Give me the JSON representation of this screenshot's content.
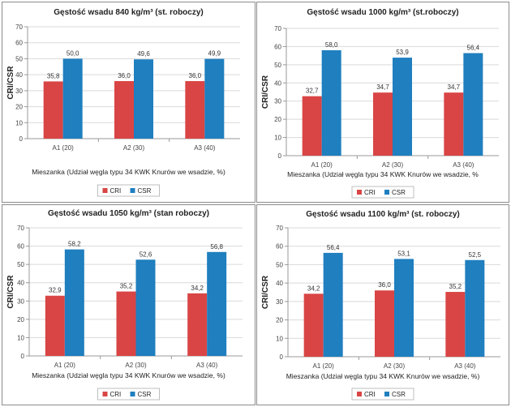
{
  "chart_data": [
    {
      "type": "bar",
      "title": "Gęstość wsadu 840 kg/m³ (st. roboczy)",
      "categories": [
        "A1 (20)",
        "A2 (30)",
        "A3 (40)"
      ],
      "series": [
        {
          "name": "CRI",
          "values": [
            "35,8",
            "36,0",
            "36,0"
          ]
        },
        {
          "name": "CSR",
          "values": [
            "50,0",
            "49,6",
            "49,9"
          ]
        }
      ],
      "xlabel": "Mieszanka (Udział węgla typu 34 KWK Knurów we wsadzie, %)",
      "ylabel": "CRI/CSR",
      "ylim": [
        0,
        70
      ],
      "yticks": [
        "0",
        "10",
        "20",
        "30",
        "40",
        "50",
        "60",
        "70"
      ],
      "legend": "bottom-center"
    },
    {
      "type": "bar",
      "title": "Gęstość wsadu 1000 kg/m³ (st.roboczy)",
      "categories": [
        "A1 (20)",
        "A2 (30)",
        "A3 (40)"
      ],
      "series": [
        {
          "name": "CRI",
          "values": [
            "32,7",
            "34,7",
            "34,7"
          ]
        },
        {
          "name": "CSR",
          "values": [
            "58,0",
            "53,9",
            "56,4"
          ]
        }
      ],
      "xlabel": "Mieszanka (Udział węgla typu 34 KWK Knurów we wsadzie, %",
      "ylabel": "CRI/CSR",
      "ylim": [
        0,
        70
      ],
      "yticks": [
        "0",
        "10",
        "20",
        "30",
        "40",
        "50",
        "60",
        "70"
      ],
      "legend": "bottom-center"
    },
    {
      "type": "bar",
      "title": "Gęstość wsadu 1050 kg/m³ (stan roboczy)",
      "categories": [
        "A1 (20)",
        "A2 (30)",
        "A3 (40)"
      ],
      "series": [
        {
          "name": "CRI",
          "values": [
            "32,9",
            "35,2",
            "34,2"
          ]
        },
        {
          "name": "CSR",
          "values": [
            "58,2",
            "52,6",
            "56,8"
          ]
        }
      ],
      "xlabel": "Mieszanka (Udział węgla typu 34 KWK Knurów we wsadzie, %)",
      "ylabel": "CRI/CSR",
      "ylim": [
        0,
        70
      ],
      "yticks": [
        "0",
        "10",
        "20",
        "30",
        "40",
        "50",
        "60",
        "70"
      ],
      "legend": "bottom-center"
    },
    {
      "type": "bar",
      "title": "Gęstość wsadu 1100 kg/m³ (st. roboczy)",
      "categories": [
        "A1 (20)",
        "A2 (30)",
        "A3 (40)"
      ],
      "series": [
        {
          "name": "CRI",
          "values": [
            "34,2",
            "36,0",
            "35,2"
          ]
        },
        {
          "name": "CSR",
          "values": [
            "56,4",
            "53,1",
            "52,5"
          ]
        }
      ],
      "xlabel": "Mieszanka (Udział węgla typu 34 KWK Knurów we wsadzie, %)",
      "ylabel": "CRI/CSR",
      "ylim": [
        0,
        70
      ],
      "yticks": [
        "0",
        "10",
        "20",
        "30",
        "40",
        "50",
        "60",
        "70"
      ],
      "legend": "bottom-center"
    }
  ],
  "colors": {
    "cri": "#d94545",
    "csr": "#1f7fbf",
    "grid": "#d9d9d9",
    "axis": "#999999"
  }
}
